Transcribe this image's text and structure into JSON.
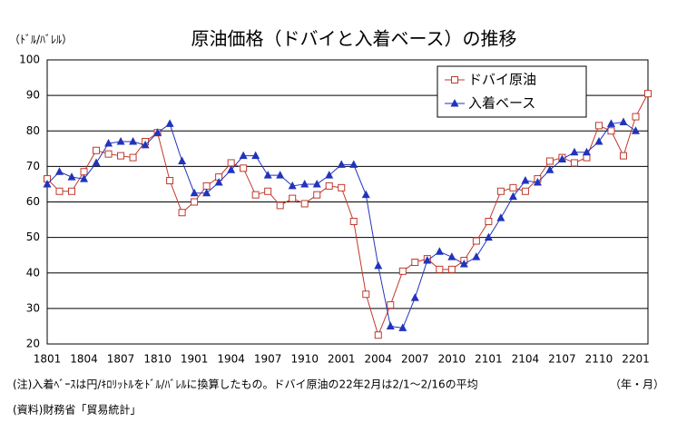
{
  "chart_data": {
    "type": "line",
    "title": "原油価格（ドバイと入着ベース）の推移",
    "y_label": "（ﾄﾞﾙ/ﾊﾞﾚﾙ）",
    "x_label": "（年・月）",
    "notes": [
      "(注)入着ﾍﾞｰｽは円/ｷﾛﾘｯﾄﾙをﾄﾞﾙ/ﾊﾞﾚﾙに換算したもの。ドバイ原油の22年2月は2/1～2/16の平均",
      "(資料)財務省「貿易統計」"
    ],
    "categories": [
      "1801",
      null,
      null,
      "1804",
      null,
      null,
      "1807",
      null,
      null,
      "1810",
      null,
      null,
      "1901",
      null,
      null,
      "1904",
      null,
      null,
      "1907",
      null,
      null,
      "1910",
      null,
      null,
      "2001",
      null,
      null,
      "2004",
      null,
      null,
      "2007",
      null,
      null,
      "2010",
      null,
      null,
      "2101",
      null,
      null,
      "2104",
      null,
      null,
      "2107",
      null,
      null,
      "2110",
      null,
      null,
      "2201",
      null
    ],
    "series": [
      {
        "name": "ドバイ原油",
        "color": "#c0392b",
        "marker": "square",
        "values": [
          66.5,
          63,
          63,
          68.5,
          74.5,
          73.5,
          73,
          72.5,
          77,
          79.5,
          66,
          57,
          60,
          64.5,
          67,
          71,
          69.5,
          62,
          63,
          59,
          61,
          59.5,
          62,
          64.5,
          64,
          54.5,
          34,
          22.5,
          31,
          40.5,
          43,
          44,
          41,
          41,
          43.5,
          49,
          54.5,
          63,
          64,
          63,
          66.5,
          71.5,
          72.5,
          71,
          72.5,
          81.5,
          80,
          73,
          84,
          90.5
        ]
      },
      {
        "name": "入着ベース",
        "color": "#2233bb",
        "marker": "triangle",
        "values": [
          65,
          68.5,
          67,
          66.5,
          71,
          76.5,
          77,
          77,
          76,
          79.5,
          82,
          71.5,
          62.5,
          62.5,
          65.5,
          69,
          73,
          73,
          67.5,
          67.5,
          64.5,
          65,
          65,
          67.5,
          70.5,
          70.5,
          62,
          42,
          25,
          24.5,
          33,
          43.5,
          46,
          44.5,
          42.5,
          44.5,
          50,
          55.5,
          61.5,
          66,
          65.5,
          69,
          72,
          74,
          74,
          77,
          82,
          82.5,
          80,
          null
        ]
      }
    ],
    "ylim": [
      20,
      100
    ],
    "yticks": [
      20,
      30,
      40,
      50,
      60,
      70,
      80,
      90,
      100
    ],
    "grid": true,
    "legend": "upper right"
  }
}
